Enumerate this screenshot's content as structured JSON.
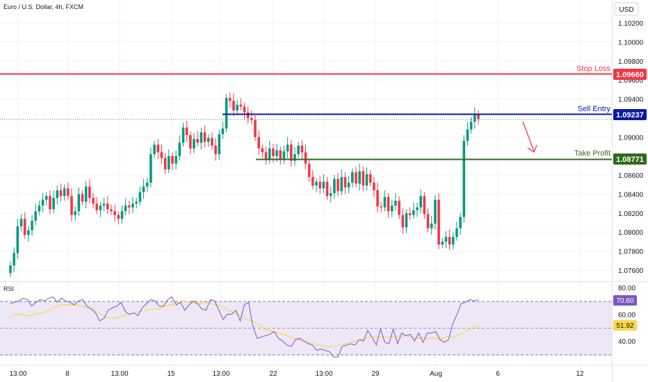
{
  "header": {
    "title": "Euro / U.S. Dollar, 4h, FXCM"
  },
  "price_axis": {
    "currency": "USD",
    "ticks": [
      "1.10200",
      "1.10000",
      "1.09800",
      "1.09600",
      "1.09400",
      "1.09000",
      "1.08600",
      "1.08400",
      "1.08200",
      "1.08000",
      "1.07800",
      "1.07600"
    ]
  },
  "levels": {
    "stop_loss": {
      "label": "Stop Loss",
      "value": "1.09660",
      "price": 1.0966,
      "color": "#f23645"
    },
    "sell_entry": {
      "label": "Sell Entry",
      "value": "1.09237",
      "price": 1.09237,
      "color": "#0a1aa5"
    },
    "take_profit": {
      "label": "Take Profit",
      "value": "1.08771",
      "price": 1.08771,
      "color": "#33691e"
    }
  },
  "rsi": {
    "label": "RSI",
    "ticks": [
      "80.00",
      "60.00",
      "40.00"
    ],
    "value": "70.60",
    "ma_value": "51.92",
    "upper_band": 70,
    "lower_band": 30,
    "rsi_color": "#7e57c2",
    "ma_color": "#f9d84a",
    "band_fill": "#ede7f6"
  },
  "time_axis": {
    "labels": [
      "13:00",
      "8",
      "13:00",
      "15",
      "13:00",
      "22",
      "13:00",
      "29",
      "Aug",
      "6",
      "12"
    ]
  },
  "colors": {
    "up": "#089981",
    "down": "#f23645",
    "arrow": "#f23645"
  },
  "chart_data": {
    "type": "candlestick",
    "title": "Euro / U.S. Dollar, 4h, FXCM",
    "ylabel": "USD",
    "ylim": [
      1.0745,
      1.1045
    ],
    "series": [
      {
        "name": "EURUSD",
        "close": [
          1.0765,
          1.0778,
          1.0806,
          1.0814,
          1.0797,
          1.0802,
          1.0812,
          1.0822,
          1.0828,
          1.0834,
          1.0838,
          1.0824,
          1.0836,
          1.0844,
          1.0838,
          1.0846,
          1.0838,
          1.0818,
          1.0822,
          1.084,
          1.0832,
          1.0848,
          1.0836,
          1.083,
          1.0823,
          1.0828,
          1.083,
          1.0824,
          1.0822,
          1.0818,
          1.0814,
          1.0822,
          1.0828,
          1.0826,
          1.083,
          1.0832,
          1.0842,
          1.0848,
          1.0852,
          1.0882,
          1.0892,
          1.0884,
          1.0878,
          1.0866,
          1.088,
          1.0872,
          1.088,
          1.0894,
          1.091,
          1.0902,
          1.0888,
          1.0898,
          1.0894,
          1.0905,
          1.0895,
          1.0899,
          1.0891,
          1.0882,
          1.0903,
          1.0909,
          1.0941,
          1.0938,
          1.0928,
          1.0934,
          1.0932,
          1.0926,
          1.092,
          1.0918,
          1.09,
          1.0888,
          1.0884,
          1.0876,
          1.0888,
          1.088,
          1.0886,
          1.0876,
          1.0885,
          1.0892,
          1.0875,
          1.0882,
          1.0891,
          1.0884,
          1.0872,
          1.0858,
          1.0849,
          1.0853,
          1.0846,
          1.0853,
          1.0838,
          1.0841,
          1.0856,
          1.0843,
          1.0858,
          1.0847,
          1.0852,
          1.0863,
          1.0851,
          1.0864,
          1.0849,
          1.0861,
          1.0852,
          1.0844,
          1.0827,
          1.0826,
          1.0837,
          1.0822,
          1.0828,
          1.0833,
          1.0818,
          1.0805,
          1.082,
          1.0818,
          1.0823,
          1.0826,
          1.0838,
          1.0819,
          1.0804,
          1.0809,
          1.0834,
          1.0787,
          1.079,
          1.0795,
          1.0787,
          1.0795,
          1.0804,
          1.0816,
          1.0896,
          1.0908,
          1.0916,
          1.0924,
          1.0919
        ]
      },
      {
        "name": "RSI",
        "values": [
          68,
          69,
          70,
          72,
          71,
          66,
          69,
          71,
          70,
          72,
          73,
          69,
          72,
          70,
          69,
          67,
          70,
          71,
          66,
          64,
          61,
          55,
          57,
          63,
          65,
          66,
          69,
          62,
          60,
          61,
          59,
          65,
          68,
          71,
          70,
          66,
          66,
          71,
          73,
          67,
          69,
          63,
          67,
          70,
          68,
          64,
          63,
          71,
          70,
          63,
          56,
          60,
          60,
          63,
          55,
          67,
          69,
          51,
          42,
          43,
          44,
          45,
          47,
          42,
          40,
          37,
          36,
          41,
          42,
          40,
          38,
          37,
          33,
          34,
          33,
          32,
          28,
          28,
          36,
          37,
          38,
          37,
          41,
          40,
          48,
          43,
          37,
          49,
          39,
          38,
          49,
          38,
          46,
          44,
          45,
          40,
          46,
          39,
          46,
          46,
          47,
          41,
          39,
          41,
          53,
          60,
          68,
          69,
          71,
          70,
          71
        ]
      },
      {
        "name": "RSI MA",
        "values": [
          58,
          60,
          60,
          59,
          59,
          60,
          61,
          62,
          64,
          66,
          67,
          67,
          67,
          67,
          66,
          65,
          64,
          61,
          59,
          57,
          57,
          58,
          59,
          60,
          61,
          62,
          63,
          63,
          64,
          64,
          66,
          67,
          68,
          69,
          70,
          69,
          68,
          68,
          69,
          68,
          67,
          66,
          64,
          62,
          60,
          58,
          56,
          55,
          53,
          50,
          48,
          47,
          46,
          45,
          44,
          42,
          41,
          40,
          39,
          38,
          37,
          36,
          36,
          36,
          37,
          38,
          39,
          40,
          41,
          42,
          43,
          43,
          43,
          43,
          43,
          43,
          44,
          44,
          43,
          42,
          42,
          42,
          42,
          42,
          42,
          43,
          43,
          44,
          46,
          48,
          50,
          52
        ]
      }
    ]
  }
}
